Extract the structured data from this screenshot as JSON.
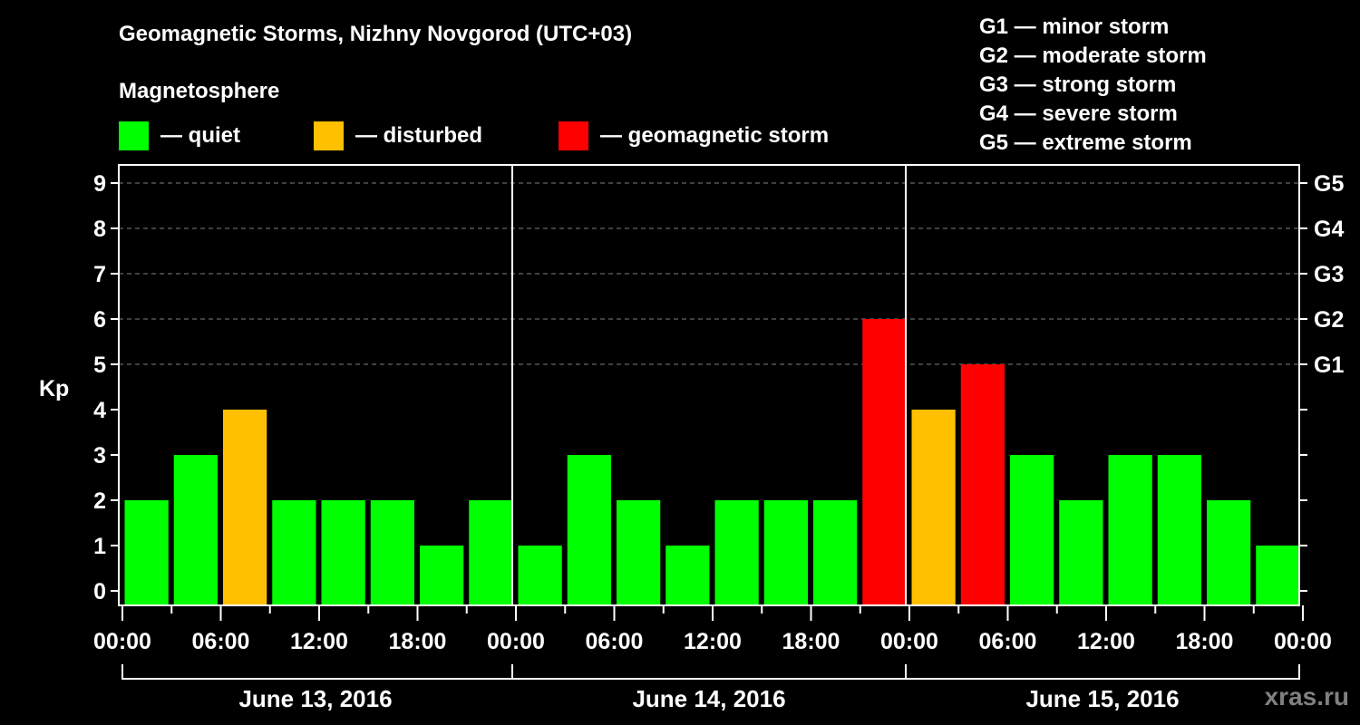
{
  "header": {
    "title": "Geomagnetic Storms, Nizhny Novgorod (UTC+03)",
    "subtitle": "Magnetosphere"
  },
  "legend": [
    {
      "label": "— quiet",
      "color": "#00ff00"
    },
    {
      "label": "— disturbed",
      "color": "#ffc000"
    },
    {
      "label": "— geomagnetic storm",
      "color": "#ff0000"
    }
  ],
  "g_scale": [
    "G1 — minor storm",
    "G2 — moderate storm",
    "G3 — strong storm",
    "G4 — severe storm",
    "G5 — extreme storm"
  ],
  "watermark": "xras.ru",
  "colors": {
    "quiet": "#00ff00",
    "disturbed": "#ffc000",
    "storm": "#ff0000",
    "axis": "#ffffff",
    "grid": "#808080",
    "background": "#000000"
  },
  "chart_data": {
    "type": "bar",
    "title": "Geomagnetic Storms, Nizhny Novgorod (UTC+03)",
    "xlabel": "",
    "ylabel": "Kp",
    "ylim": [
      0,
      9
    ],
    "yticks": [
      0,
      1,
      2,
      3,
      4,
      5,
      6,
      7,
      8,
      9
    ],
    "right_axis_labels": [
      {
        "kp": 5,
        "label": "G1"
      },
      {
        "kp": 6,
        "label": "G2"
      },
      {
        "kp": 7,
        "label": "G3"
      },
      {
        "kp": 8,
        "label": "G4"
      },
      {
        "kp": 9,
        "label": "G5"
      }
    ],
    "grid": "dashed horizontal at Kp 5-9",
    "x_tick_labels": [
      "00:00",
      "06:00",
      "12:00",
      "18:00",
      "00:00",
      "06:00",
      "12:00",
      "18:00",
      "00:00",
      "06:00",
      "12:00",
      "18:00",
      "00:00"
    ],
    "days": [
      "June 13, 2016",
      "June 14, 2016",
      "June 15, 2016"
    ],
    "interval_hours": 3,
    "series": [
      {
        "name": "June 13, 2016",
        "values": [
          2,
          3,
          4,
          2,
          2,
          2,
          1,
          2
        ],
        "status": [
          "quiet",
          "quiet",
          "disturbed",
          "quiet",
          "quiet",
          "quiet",
          "quiet",
          "quiet"
        ]
      },
      {
        "name": "June 14, 2016",
        "values": [
          1,
          3,
          2,
          1,
          2,
          2,
          2,
          6
        ],
        "status": [
          "quiet",
          "quiet",
          "quiet",
          "quiet",
          "quiet",
          "quiet",
          "quiet",
          "storm"
        ]
      },
      {
        "name": "June 15, 2016",
        "values": [
          4,
          5,
          3,
          2,
          3,
          3,
          2,
          1
        ],
        "status": [
          "disturbed",
          "storm",
          "quiet",
          "quiet",
          "quiet",
          "quiet",
          "quiet",
          "quiet"
        ]
      }
    ]
  }
}
